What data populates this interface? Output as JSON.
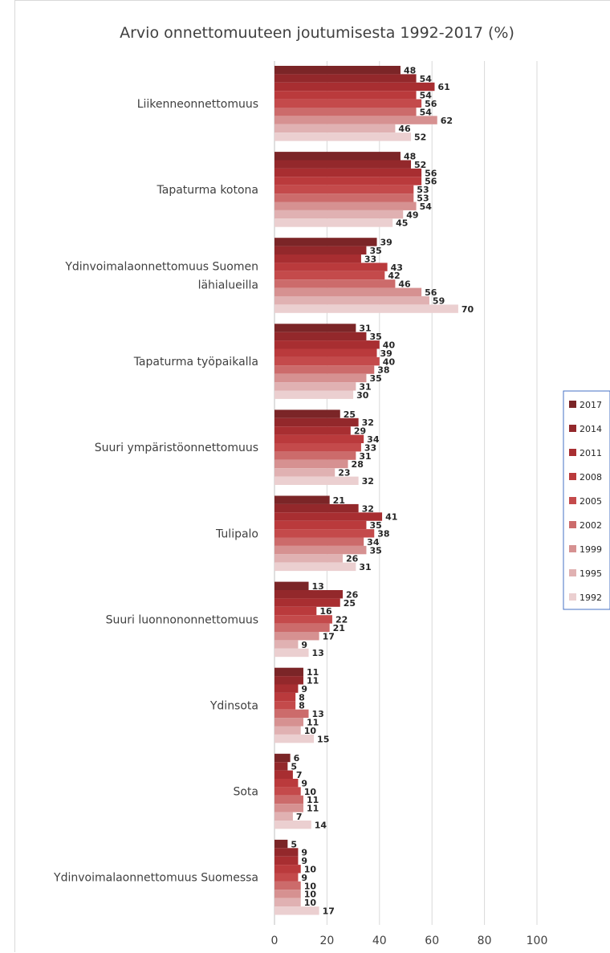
{
  "chart_data": {
    "type": "bar",
    "orientation": "horizontal",
    "title": "Arvio onnettomuuteen joutumisesta 1992-2017 (%)",
    "xlabel": "",
    "ylabel": "",
    "xlim": [
      0,
      100
    ],
    "x_ticks": [
      "0",
      "20",
      "40",
      "60",
      "80",
      "100"
    ],
    "grid": true,
    "legend_position": "right",
    "categories": [
      "Liikenneonnettomuus",
      "Tapaturma kotona",
      "Ydinvoimalaonnettomuus Suomen lähialueilla",
      "Tapaturma työpaikalla",
      "Suuri ympäristöonnettomuus",
      "Tulipalo",
      "Suuri luonnononnettomuus",
      "Ydinsota",
      "Sota",
      "Ydinvoimalaonnettomuus Suomessa"
    ],
    "category_label_lines": [
      [
        "Liikenneonnettomuus"
      ],
      [
        "Tapaturma kotona"
      ],
      [
        "Ydinvoimalaonnettomuus Suomen",
        "lähialueilla"
      ],
      [
        "Tapaturma työpaikalla"
      ],
      [
        "Suuri ympäristöonnettomuus"
      ],
      [
        "Tulipalo"
      ],
      [
        "Suuri luonnononnettomuus"
      ],
      [
        "Ydinsota"
      ],
      [
        "Sota"
      ],
      [
        "Ydinvoimalaonnettomuus Suomessa"
      ]
    ],
    "series": [
      {
        "name": "2017",
        "color": "#7b2527",
        "values": [
          48,
          48,
          39,
          31,
          25,
          21,
          13,
          11,
          6,
          5
        ]
      },
      {
        "name": "2014",
        "color": "#93282b",
        "values": [
          54,
          52,
          35,
          35,
          32,
          32,
          26,
          11,
          5,
          9
        ]
      },
      {
        "name": "2011",
        "color": "#a82e31",
        "values": [
          61,
          56,
          33,
          40,
          29,
          41,
          25,
          9,
          7,
          9
        ]
      },
      {
        "name": "2008",
        "color": "#ba3a3c",
        "values": [
          54,
          56,
          43,
          39,
          34,
          35,
          16,
          8,
          9,
          10
        ]
      },
      {
        "name": "2005",
        "color": "#c44a4b",
        "values": [
          56,
          53,
          42,
          40,
          33,
          38,
          22,
          8,
          10,
          9
        ]
      },
      {
        "name": "2002",
        "color": "#cc6b6b",
        "values": [
          54,
          53,
          46,
          38,
          31,
          34,
          21,
          13,
          11,
          10
        ]
      },
      {
        "name": "1999",
        "color": "#d69191",
        "values": [
          62,
          54,
          56,
          35,
          28,
          35,
          17,
          11,
          11,
          10
        ]
      },
      {
        "name": "1995",
        "color": "#e0b1b2",
        "values": [
          46,
          49,
          59,
          31,
          23,
          26,
          9,
          10,
          7,
          10
        ]
      },
      {
        "name": "1992",
        "color": "#ebcfd0",
        "values": [
          52,
          45,
          70,
          30,
          32,
          31,
          13,
          15,
          14,
          17
        ]
      }
    ]
  }
}
